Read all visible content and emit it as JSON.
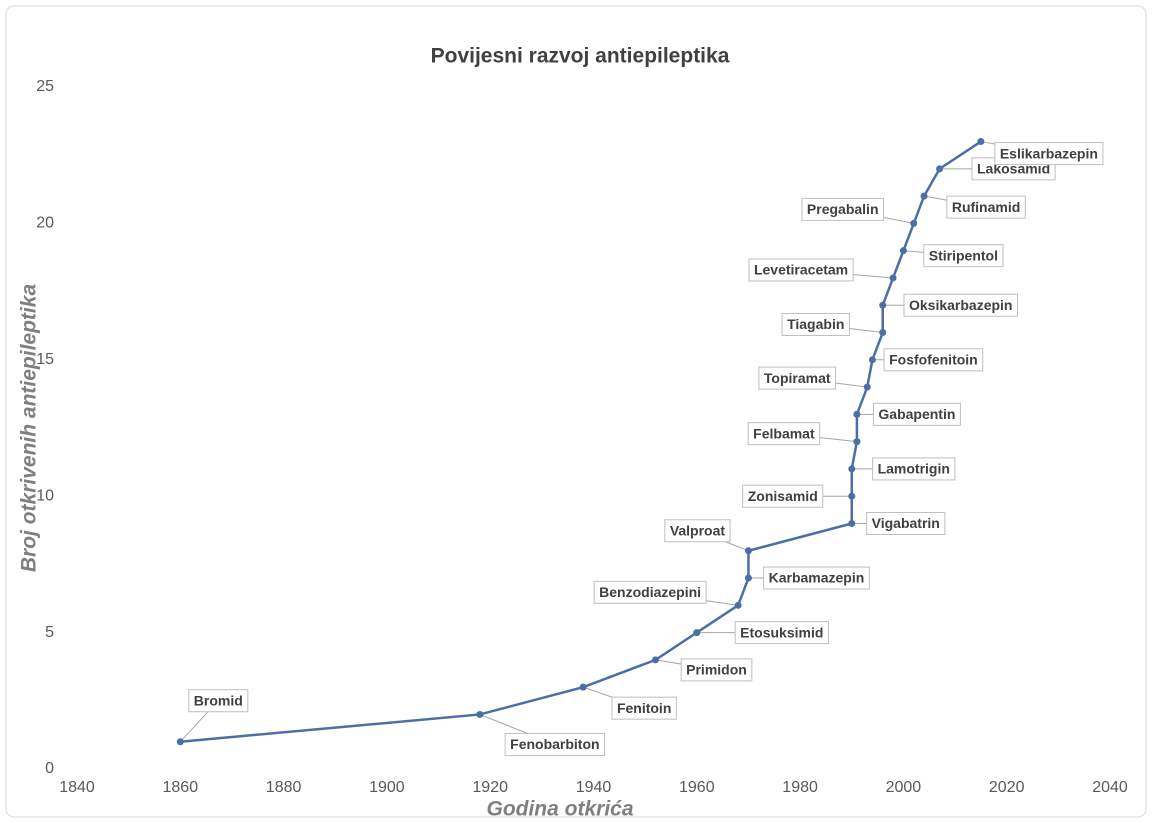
{
  "chart_data": {
    "type": "line",
    "title": "Povijesni razvoj antiepileptika",
    "x_label": "Godina otkrića",
    "y_label": "Broj otkrivenih antiepileptika",
    "x": [
      1860,
      1918,
      1938,
      1952,
      1960,
      1968,
      1970,
      1970,
      1990,
      1990,
      1990,
      1991,
      1991,
      1993,
      1994,
      1996,
      1996,
      1998,
      2000,
      2002,
      2004,
      2007,
      2015
    ],
    "values": [
      1,
      2,
      3,
      4,
      5,
      6,
      7,
      8,
      9,
      10,
      11,
      12,
      13,
      14,
      15,
      16,
      17,
      18,
      19,
      20,
      21,
      22,
      23
    ],
    "point_labels": [
      "Bromid",
      "Fenobarbiton",
      "Fenitoin",
      "Primidon",
      "Etosuksimid",
      "Benzodiazepini",
      "Karbamazepin",
      "Valproat",
      "Vigabatrin",
      "Zonisamid",
      "Lamotrigin",
      "Felbamat",
      "Gabapentin",
      "Topiramat",
      "Fosfofenitoin",
      "Tiagabin",
      "Oksikarbazepin",
      "Levetiracetam",
      "Stiripentol",
      "Pregabalin",
      "Rufinamid",
      "Lakosamid",
      "Eslikarbazepin"
    ],
    "color": "#4a6fa5",
    "xlim": [
      1840,
      2040
    ],
    "xticks": [
      1840,
      1860,
      1880,
      1900,
      1920,
      1940,
      1960,
      1980,
      2000,
      2020,
      2040
    ],
    "ylim": [
      0,
      25
    ],
    "yticks": [
      0,
      5,
      10,
      15,
      20,
      25
    ],
    "grid": false
  }
}
